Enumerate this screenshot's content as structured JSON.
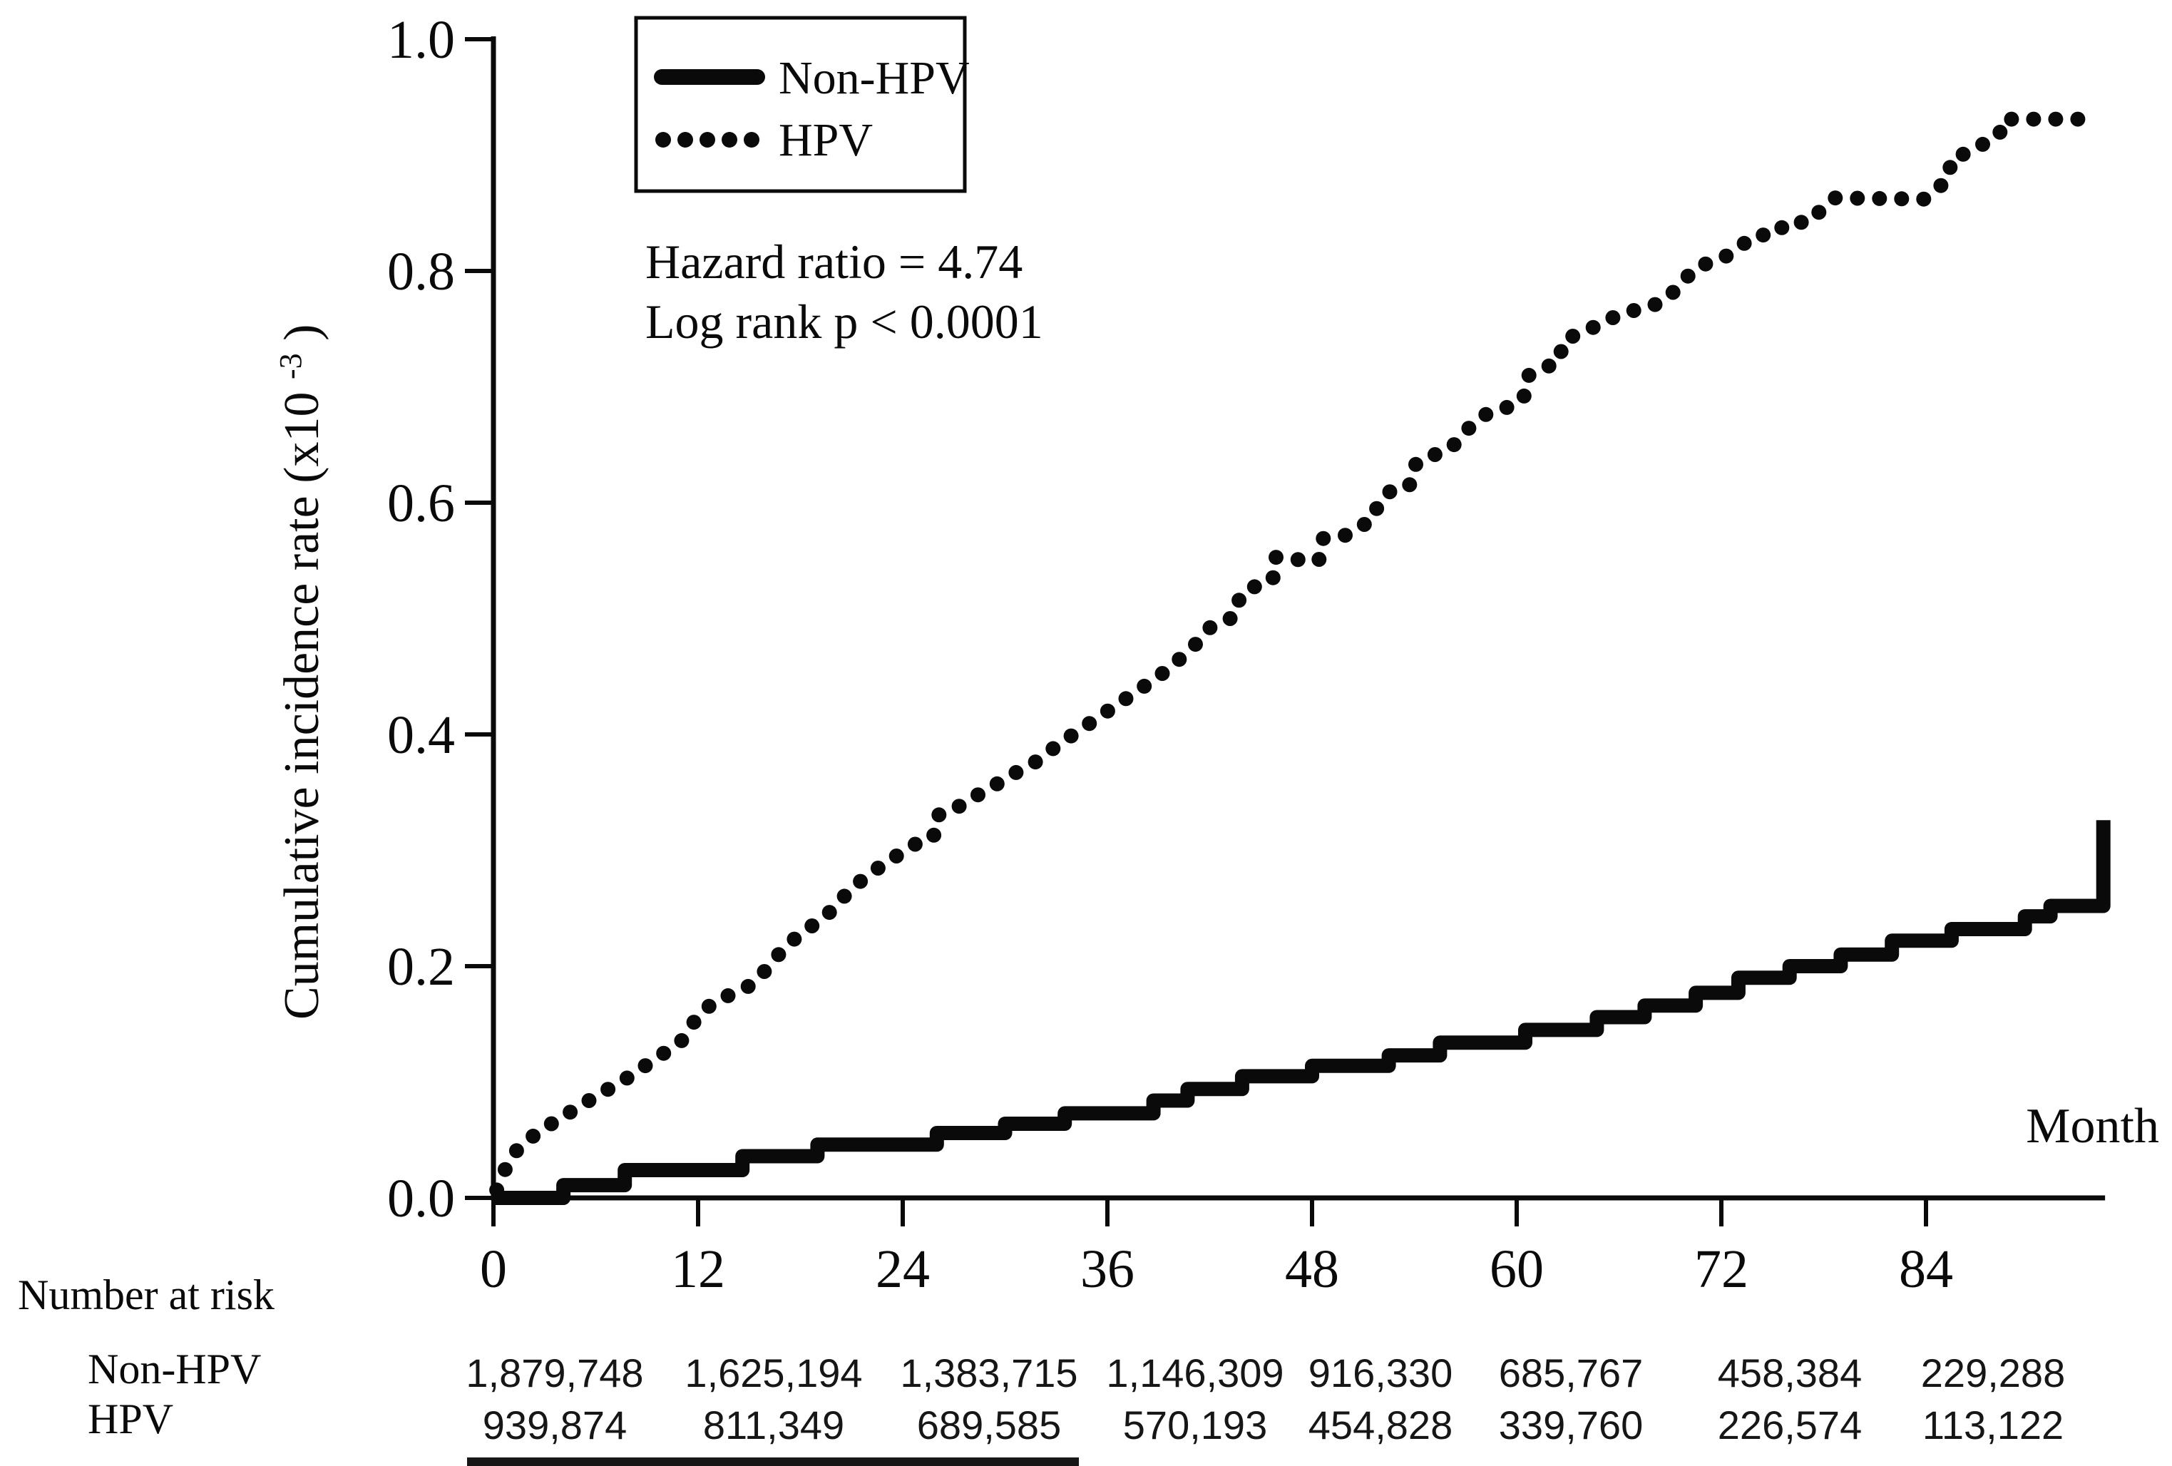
{
  "figure": {
    "legend": {
      "items": [
        {
          "label": "Non-HPV",
          "style": "solid"
        },
        {
          "label": "HPV",
          "style": "dotted"
        }
      ]
    },
    "annotation": {
      "line1": "Hazard ratio = 4.74",
      "line2": "Log rank p < 0.0001"
    },
    "xlabel": "Month",
    "ylabel": {
      "main": "Cumulative incidence rate (x10",
      "exp": "-3",
      "close": ")"
    },
    "risk_table": {
      "title": "Number at risk",
      "rows": [
        {
          "label": "Non-HPV",
          "values": [
            "1,879,748",
            "1,625,194",
            "1,383,715",
            "1,146,309",
            "916,330",
            "685,767",
            "458,384",
            "229,288"
          ]
        },
        {
          "label": "HPV",
          "values": [
            "939,874",
            "811,349",
            "689,585",
            "570,193",
            "454,828",
            "339,760",
            "226,574",
            "113,122"
          ]
        }
      ]
    }
  },
  "chart_data": {
    "type": "line",
    "title": "",
    "xlabel": "Month",
    "ylabel": "Cumulative incidence rate (x10^-3)",
    "xlim": [
      0,
      94.5
    ],
    "ylim": [
      0,
      1.0
    ],
    "grid": false,
    "legend_position": "upper-left",
    "x_ticks": [
      0,
      12,
      24,
      36,
      48,
      60,
      72,
      84
    ],
    "y_ticks": [
      "0.0",
      "0.2",
      "0.4",
      "0.6",
      "0.8",
      "1.0"
    ],
    "annotations": [
      "Hazard ratio = 4.74",
      "Log rank p < 0.0001"
    ],
    "series": [
      {
        "name": "Non-HPV",
        "style": "step-solid",
        "points": [
          [
            0,
            0
          ],
          [
            4.1,
            0.011
          ],
          [
            7.7,
            0.024
          ],
          [
            14.6,
            0.036
          ],
          [
            19,
            0.046
          ],
          [
            26,
            0.056
          ],
          [
            30,
            0.064
          ],
          [
            33.5,
            0.073
          ],
          [
            38.7,
            0.084
          ],
          [
            40.7,
            0.094
          ],
          [
            43.9,
            0.105
          ],
          [
            48,
            0.114
          ],
          [
            52.5,
            0.123
          ],
          [
            55.5,
            0.134
          ],
          [
            60.5,
            0.145
          ],
          [
            64.7,
            0.156
          ],
          [
            67.5,
            0.166
          ],
          [
            70.5,
            0.177
          ],
          [
            73,
            0.19
          ],
          [
            76,
            0.2
          ],
          [
            79,
            0.21
          ],
          [
            82,
            0.222
          ],
          [
            85.5,
            0.232
          ],
          [
            89.8,
            0.243
          ],
          [
            91.3,
            0.252
          ],
          [
            94.4,
            0.326
          ]
        ]
      },
      {
        "name": "HPV",
        "style": "dotted",
        "points": [
          [
            0,
            0
          ],
          [
            0.7,
            0.025
          ],
          [
            1.3,
            0.04
          ],
          [
            2,
            0.05
          ],
          [
            3,
            0.06
          ],
          [
            4,
            0.07
          ],
          [
            5,
            0.078
          ],
          [
            6,
            0.088
          ],
          [
            7,
            0.096
          ],
          [
            8,
            0.105
          ],
          [
            9,
            0.115
          ],
          [
            10,
            0.125
          ],
          [
            11,
            0.135
          ],
          [
            12,
            0.157
          ],
          [
            13,
            0.17
          ],
          [
            14,
            0.176
          ],
          [
            15,
            0.183
          ],
          [
            16,
            0.197
          ],
          [
            17,
            0.215
          ],
          [
            18,
            0.228
          ],
          [
            19,
            0.238
          ],
          [
            20,
            0.25
          ],
          [
            21,
            0.268
          ],
          [
            22,
            0.278
          ],
          [
            23,
            0.29
          ],
          [
            24,
            0.298
          ],
          [
            25,
            0.308
          ],
          [
            25.8,
            0.311
          ],
          [
            26,
            0.33
          ],
          [
            27,
            0.335
          ],
          [
            28,
            0.345
          ],
          [
            29,
            0.352
          ],
          [
            30,
            0.362
          ],
          [
            31,
            0.37
          ],
          [
            32,
            0.378
          ],
          [
            33,
            0.39
          ],
          [
            34,
            0.4
          ],
          [
            35,
            0.41
          ],
          [
            36,
            0.42
          ],
          [
            37,
            0.43
          ],
          [
            38,
            0.44
          ],
          [
            39,
            0.45
          ],
          [
            40,
            0.462
          ],
          [
            41,
            0.475
          ],
          [
            42,
            0.492
          ],
          [
            43.5,
            0.502
          ],
          [
            43.8,
            0.521
          ],
          [
            44.7,
            0.528
          ],
          [
            45.7,
            0.533
          ],
          [
            45.8,
            0.553
          ],
          [
            47,
            0.551
          ],
          [
            48.4,
            0.55
          ],
          [
            48.6,
            0.569
          ],
          [
            50,
            0.572
          ],
          [
            50.6,
            0.578
          ],
          [
            51.6,
            0.585
          ],
          [
            51.9,
            0.601
          ],
          [
            52.6,
            0.61
          ],
          [
            53.7,
            0.614
          ],
          [
            53.9,
            0.631
          ],
          [
            54.7,
            0.64
          ],
          [
            55.7,
            0.643
          ],
          [
            56.5,
            0.652
          ],
          [
            57.1,
            0.663
          ],
          [
            58,
            0.675
          ],
          [
            58.7,
            0.679
          ],
          [
            59.6,
            0.683
          ],
          [
            60.4,
            0.689
          ],
          [
            60.6,
            0.709
          ],
          [
            61.5,
            0.716
          ],
          [
            62.5,
            0.721
          ],
          [
            62.7,
            0.74
          ],
          [
            63.5,
            0.745
          ],
          [
            64.6,
            0.752
          ],
          [
            65.5,
            0.759
          ],
          [
            66.5,
            0.764
          ],
          [
            67.5,
            0.769
          ],
          [
            68.4,
            0.772
          ],
          [
            69.2,
            0.782
          ],
          [
            69.9,
            0.793
          ],
          [
            70.4,
            0.802
          ],
          [
            71.4,
            0.808
          ],
          [
            72.2,
            0.812
          ],
          [
            73.2,
            0.822
          ],
          [
            73.9,
            0.831
          ],
          [
            75.2,
            0.831
          ],
          [
            75.8,
            0.842
          ],
          [
            77.2,
            0.842
          ],
          [
            77.8,
            0.852
          ],
          [
            78.6,
            0.863
          ],
          [
            83.9,
            0.862
          ],
          [
            84.5,
            0.87
          ],
          [
            85.3,
            0.878
          ],
          [
            85.5,
            0.898
          ],
          [
            86.5,
            0.902
          ],
          [
            87.4,
            0.91
          ],
          [
            88.3,
            0.917
          ],
          [
            88.5,
            0.931
          ],
          [
            93.8,
            0.931
          ]
        ]
      }
    ],
    "number_at_risk": {
      "months": [
        0,
        12,
        24,
        36,
        48,
        60,
        72,
        84
      ],
      "Non-HPV": [
        1879748,
        1625194,
        1383715,
        1146309,
        916330,
        685767,
        458384,
        229288
      ],
      "HPV": [
        939874,
        811349,
        689585,
        570193,
        454828,
        339760,
        226574,
        113122
      ]
    }
  }
}
